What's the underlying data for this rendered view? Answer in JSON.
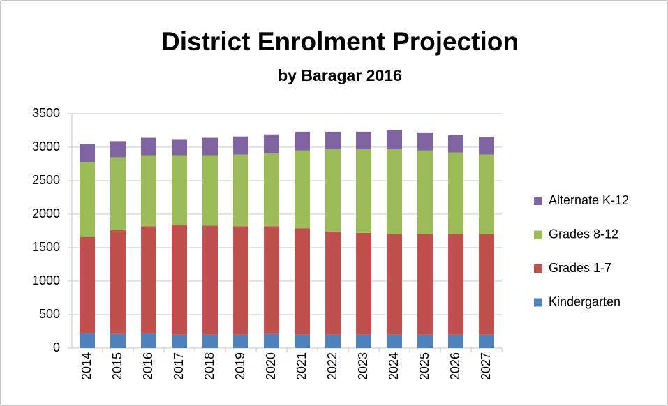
{
  "chart_data": {
    "type": "stacked_bar",
    "title": "District Enrolment Projection",
    "subtitle": "by Baragar 2016",
    "categories": [
      "2014",
      "2015",
      "2016",
      "2017",
      "2018",
      "2019",
      "2020",
      "2021",
      "2022",
      "2023",
      "2024",
      "2025",
      "2026",
      "2027"
    ],
    "series": [
      {
        "name": "Kindergarten",
        "color": "#4f81bd",
        "values": [
          220,
          210,
          220,
          200,
          200,
          200,
          210,
          200,
          200,
          200,
          200,
          200,
          200,
          200
        ]
      },
      {
        "name": "Grades 1-7",
        "color": "#c0504d",
        "values": [
          1440,
          1550,
          1600,
          1640,
          1630,
          1620,
          1610,
          1590,
          1540,
          1520,
          1500,
          1500,
          1500,
          1500
        ]
      },
      {
        "name": "Grades 8-12",
        "color": "#9bbb59",
        "values": [
          1120,
          1090,
          1060,
          1040,
          1050,
          1070,
          1090,
          1160,
          1230,
          1250,
          1270,
          1250,
          1220,
          1190
        ]
      },
      {
        "name": "Alternate K-12",
        "color": "#8064a2",
        "values": [
          270,
          240,
          260,
          240,
          260,
          270,
          280,
          280,
          260,
          260,
          280,
          270,
          260,
          260
        ]
      }
    ],
    "ylim": [
      0,
      3500
    ],
    "yticks": [
      0,
      500,
      1000,
      1500,
      2000,
      2500,
      3000,
      3500
    ],
    "grid": true,
    "legend": "right"
  }
}
